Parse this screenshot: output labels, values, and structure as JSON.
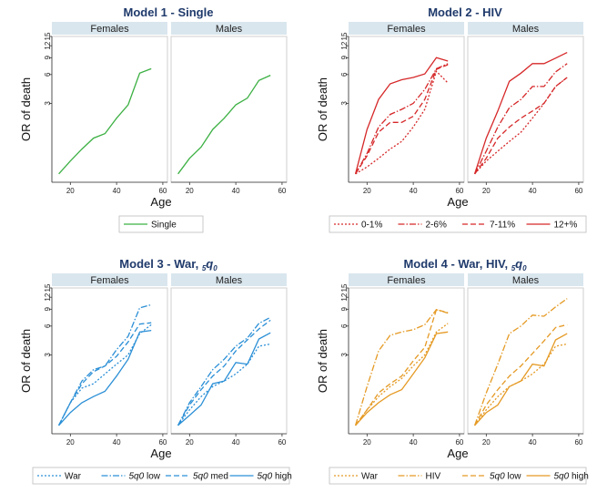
{
  "figure": {
    "ylabel": "OR of death",
    "xlabel": "Age"
  },
  "chart_data": [
    {
      "type": "line",
      "title": "Model 1 - Single",
      "panels": [
        "Females",
        "Males"
      ],
      "xticks": [
        20,
        40,
        60
      ],
      "yticks": [
        3,
        6,
        9,
        12,
        15
      ],
      "xlim": [
        12,
        62
      ],
      "ylim": [
        0.45,
        15
      ],
      "yscale": "log",
      "series": [
        {
          "name": "Single",
          "color": "#3cb043",
          "dash": "solid",
          "females": [
            [
              15,
              0.55
            ],
            [
              20,
              0.75
            ],
            [
              25,
              1.0
            ],
            [
              30,
              1.3
            ],
            [
              35,
              1.45
            ],
            [
              40,
              2.1
            ],
            [
              45,
              2.9
            ],
            [
              50,
              6.2
            ],
            [
              55,
              6.9
            ]
          ],
          "males": [
            [
              15,
              0.55
            ],
            [
              20,
              0.8
            ],
            [
              25,
              1.05
            ],
            [
              30,
              1.6
            ],
            [
              35,
              2.1
            ],
            [
              40,
              2.9
            ],
            [
              45,
              3.4
            ],
            [
              50,
              5.2
            ],
            [
              55,
              5.9
            ]
          ]
        }
      ],
      "legend": {
        "cols": 1,
        "labels": [
          "Single"
        ]
      }
    },
    {
      "type": "line",
      "title": "Model 2 - HIV",
      "panels": [
        "Females",
        "Males"
      ],
      "xticks": [
        20,
        40,
        60
      ],
      "yticks": [
        3,
        6,
        9,
        12,
        15
      ],
      "xlim": [
        12,
        62
      ],
      "ylim": [
        0.45,
        15
      ],
      "yscale": "log",
      "series": [
        {
          "name": "0-1%",
          "color": "#d62728",
          "dash": "2,2",
          "females": [
            [
              15,
              0.55
            ],
            [
              20,
              0.65
            ],
            [
              25,
              0.8
            ],
            [
              30,
              1.0
            ],
            [
              35,
              1.2
            ],
            [
              40,
              1.7
            ],
            [
              45,
              2.6
            ],
            [
              50,
              6.5
            ],
            [
              55,
              4.9
            ]
          ],
          "males": [
            [
              15,
              0.55
            ],
            [
              20,
              0.75
            ],
            [
              25,
              0.95
            ],
            [
              30,
              1.2
            ],
            [
              35,
              1.5
            ],
            [
              40,
              2.1
            ],
            [
              45,
              3.0
            ],
            [
              50,
              4.5
            ],
            [
              55,
              5.6
            ]
          ]
        },
        {
          "name": "2-6%",
          "color": "#d62728",
          "dash": "7,2,1.5,2",
          "females": [
            [
              15,
              0.55
            ],
            [
              20,
              0.9
            ],
            [
              25,
              1.7
            ],
            [
              30,
              2.3
            ],
            [
              35,
              2.6
            ],
            [
              40,
              3.0
            ],
            [
              45,
              4.2
            ],
            [
              50,
              6.9
            ],
            [
              55,
              7.8
            ]
          ],
          "males": [
            [
              15,
              0.55
            ],
            [
              20,
              0.95
            ],
            [
              25,
              1.7
            ],
            [
              30,
              2.7
            ],
            [
              35,
              3.3
            ],
            [
              40,
              4.5
            ],
            [
              45,
              4.5
            ],
            [
              50,
              6.4
            ],
            [
              55,
              7.8
            ]
          ]
        },
        {
          "name": "7-11%",
          "color": "#d62728",
          "dash": "6,3",
          "females": [
            [
              15,
              0.55
            ],
            [
              20,
              0.85
            ],
            [
              25,
              1.5
            ],
            [
              30,
              1.9
            ],
            [
              35,
              1.9
            ],
            [
              40,
              2.2
            ],
            [
              45,
              3.3
            ],
            [
              50,
              6.8
            ],
            [
              55,
              7.6
            ]
          ],
          "males": [
            [
              15,
              0.55
            ],
            [
              20,
              0.8
            ],
            [
              25,
              1.3
            ],
            [
              30,
              1.7
            ],
            [
              35,
              2.1
            ],
            [
              40,
              2.5
            ],
            [
              45,
              3.0
            ],
            [
              50,
              4.5
            ],
            [
              55,
              5.6
            ]
          ]
        },
        {
          "name": "12+%",
          "color": "#d62728",
          "dash": "solid",
          "females": [
            [
              15,
              0.55
            ],
            [
              20,
              1.6
            ],
            [
              25,
              3.3
            ],
            [
              30,
              4.8
            ],
            [
              35,
              5.3
            ],
            [
              40,
              5.6
            ],
            [
              45,
              6.1
            ],
            [
              50,
              9.0
            ],
            [
              55,
              8.3
            ]
          ],
          "males": [
            [
              15,
              0.55
            ],
            [
              20,
              1.3
            ],
            [
              25,
              2.5
            ],
            [
              30,
              5.1
            ],
            [
              35,
              6.2
            ],
            [
              40,
              7.8
            ],
            [
              45,
              7.8
            ],
            [
              50,
              8.9
            ],
            [
              55,
              10.2
            ]
          ]
        }
      ],
      "legend": {
        "cols": 4,
        "labels": [
          "0-1%",
          "2-6%",
          "7-11%",
          "12+%"
        ]
      }
    },
    {
      "type": "line",
      "title": "Model 3 - War, ",
      "title_math": "5q0",
      "panels": [
        "Females",
        "Males"
      ],
      "xticks": [
        20,
        40,
        60
      ],
      "yticks": [
        3,
        6,
        9,
        12,
        15
      ],
      "xlim": [
        12,
        62
      ],
      "ylim": [
        0.45,
        15
      ],
      "yscale": "log",
      "series": [
        {
          "name": "War",
          "color": "#2a8fd6",
          "dash": "2,2",
          "females": [
            [
              15,
              0.55
            ],
            [
              20,
              0.95
            ],
            [
              25,
              1.35
            ],
            [
              30,
              1.5
            ],
            [
              35,
              1.9
            ],
            [
              40,
              2.4
            ],
            [
              45,
              3.0
            ],
            [
              50,
              5.0
            ],
            [
              55,
              6.2
            ]
          ],
          "males": [
            [
              15,
              0.55
            ],
            [
              20,
              0.8
            ],
            [
              25,
              1.1
            ],
            [
              30,
              1.4
            ],
            [
              35,
              1.6
            ],
            [
              40,
              1.9
            ],
            [
              45,
              2.4
            ],
            [
              50,
              3.7
            ],
            [
              55,
              3.9
            ]
          ]
        },
        {
          "name": "5q0 low",
          "color": "#2a8fd6",
          "dash": "7,2,1.5,2",
          "females": [
            [
              15,
              0.55
            ],
            [
              20,
              0.95
            ],
            [
              25,
              1.6
            ],
            [
              30,
              2.1
            ],
            [
              35,
              2.3
            ],
            [
              40,
              3.4
            ],
            [
              45,
              4.7
            ],
            [
              50,
              9.3
            ],
            [
              55,
              10.0
            ]
          ],
          "males": [
            [
              15,
              0.55
            ],
            [
              20,
              0.95
            ],
            [
              25,
              1.4
            ],
            [
              30,
              2.1
            ],
            [
              35,
              2.7
            ],
            [
              40,
              3.7
            ],
            [
              45,
              4.5
            ],
            [
              50,
              6.4
            ],
            [
              55,
              7.4
            ]
          ]
        },
        {
          "name": "5q0 med",
          "color": "#2a8fd6",
          "dash": "6,3",
          "females": [
            [
              15,
              0.55
            ],
            [
              20,
              0.95
            ],
            [
              25,
              1.5
            ],
            [
              30,
              2.0
            ],
            [
              35,
              2.3
            ],
            [
              40,
              2.9
            ],
            [
              45,
              4.1
            ],
            [
              50,
              6.3
            ],
            [
              55,
              6.5
            ]
          ],
          "males": [
            [
              15,
              0.55
            ],
            [
              20,
              0.9
            ],
            [
              25,
              1.3
            ],
            [
              30,
              1.8
            ],
            [
              35,
              2.3
            ],
            [
              40,
              3.3
            ],
            [
              45,
              4.3
            ],
            [
              50,
              5.6
            ],
            [
              55,
              6.9
            ]
          ]
        },
        {
          "name": "5q0 high",
          "color": "#2a8fd6",
          "dash": "solid",
          "females": [
            [
              15,
              0.55
            ],
            [
              20,
              0.75
            ],
            [
              25,
              0.95
            ],
            [
              30,
              1.1
            ],
            [
              35,
              1.25
            ],
            [
              40,
              1.8
            ],
            [
              45,
              2.7
            ],
            [
              50,
              5.2
            ],
            [
              55,
              5.4
            ]
          ],
          "males": [
            [
              15,
              0.55
            ],
            [
              20,
              0.7
            ],
            [
              25,
              0.9
            ],
            [
              30,
              1.5
            ],
            [
              35,
              1.6
            ],
            [
              40,
              2.5
            ],
            [
              45,
              2.4
            ],
            [
              50,
              4.4
            ],
            [
              55,
              5.1
            ]
          ]
        }
      ],
      "legend": {
        "cols": 4,
        "labels": [
          "War",
          "5q0 low",
          "5q0 med",
          "5q0 high"
        ]
      }
    },
    {
      "type": "line",
      "title": "Model 4 - War, HIV, ",
      "title_math": "5q0",
      "panels": [
        "Females",
        "Males"
      ],
      "xticks": [
        20,
        40,
        60
      ],
      "yticks": [
        3,
        6,
        9,
        12,
        15
      ],
      "xlim": [
        12,
        62
      ],
      "ylim": [
        0.45,
        15
      ],
      "yscale": "log",
      "series": [
        {
          "name": "War",
          "color": "#e59a24",
          "dash": "2,2",
          "females": [
            [
              15,
              0.55
            ],
            [
              20,
              0.8
            ],
            [
              25,
              1.1
            ],
            [
              30,
              1.4
            ],
            [
              35,
              1.7
            ],
            [
              40,
              2.3
            ],
            [
              45,
              3.0
            ],
            [
              50,
              5.2
            ],
            [
              55,
              6.4
            ]
          ],
          "males": [
            [
              15,
              0.55
            ],
            [
              20,
              0.8
            ],
            [
              25,
              1.1
            ],
            [
              30,
              1.4
            ],
            [
              35,
              1.6
            ],
            [
              40,
              1.9
            ],
            [
              45,
              2.4
            ],
            [
              50,
              3.7
            ],
            [
              55,
              3.9
            ]
          ]
        },
        {
          "name": "HIV",
          "color": "#e59a24",
          "dash": "7,2,1.5,2",
          "females": [
            [
              15,
              0.55
            ],
            [
              20,
              1.4
            ],
            [
              25,
              3.3
            ],
            [
              30,
              4.8
            ],
            [
              35,
              5.2
            ],
            [
              40,
              5.5
            ],
            [
              45,
              6.2
            ],
            [
              50,
              8.9
            ],
            [
              55,
              8.2
            ]
          ],
          "males": [
            [
              15,
              0.55
            ],
            [
              20,
              1.2
            ],
            [
              25,
              2.4
            ],
            [
              30,
              5.0
            ],
            [
              35,
              6.0
            ],
            [
              40,
              7.8
            ],
            [
              45,
              7.6
            ],
            [
              50,
              9.5
            ],
            [
              55,
              11.6
            ]
          ]
        },
        {
          "name": "5q0 low",
          "color": "#e59a24",
          "dash": "6,3",
          "females": [
            [
              15,
              0.55
            ],
            [
              20,
              0.8
            ],
            [
              25,
              1.2
            ],
            [
              30,
              1.5
            ],
            [
              35,
              1.8
            ],
            [
              40,
              2.6
            ],
            [
              45,
              3.6
            ],
            [
              50,
              8.9
            ],
            [
              55,
              8.3
            ]
          ],
          "males": [
            [
              15,
              0.55
            ],
            [
              20,
              0.9
            ],
            [
              25,
              1.3
            ],
            [
              30,
              1.8
            ],
            [
              35,
              2.3
            ],
            [
              40,
              3.1
            ],
            [
              45,
              4.2
            ],
            [
              50,
              5.8
            ],
            [
              55,
              6.2
            ]
          ]
        },
        {
          "name": "5q0 high",
          "color": "#e59a24",
          "dash": "solid",
          "females": [
            [
              15,
              0.55
            ],
            [
              20,
              0.75
            ],
            [
              25,
              0.95
            ],
            [
              30,
              1.15
            ],
            [
              35,
              1.3
            ],
            [
              40,
              1.9
            ],
            [
              45,
              2.8
            ],
            [
              50,
              5.0
            ],
            [
              55,
              5.2
            ]
          ],
          "males": [
            [
              15,
              0.55
            ],
            [
              20,
              0.75
            ],
            [
              25,
              0.9
            ],
            [
              30,
              1.4
            ],
            [
              35,
              1.6
            ],
            [
              40,
              2.4
            ],
            [
              45,
              2.3
            ],
            [
              50,
              4.3
            ],
            [
              55,
              5.0
            ]
          ]
        }
      ],
      "legend": {
        "cols": 4,
        "labels": [
          "War",
          "HIV",
          "5q0 low",
          "5q0 high"
        ]
      }
    }
  ]
}
